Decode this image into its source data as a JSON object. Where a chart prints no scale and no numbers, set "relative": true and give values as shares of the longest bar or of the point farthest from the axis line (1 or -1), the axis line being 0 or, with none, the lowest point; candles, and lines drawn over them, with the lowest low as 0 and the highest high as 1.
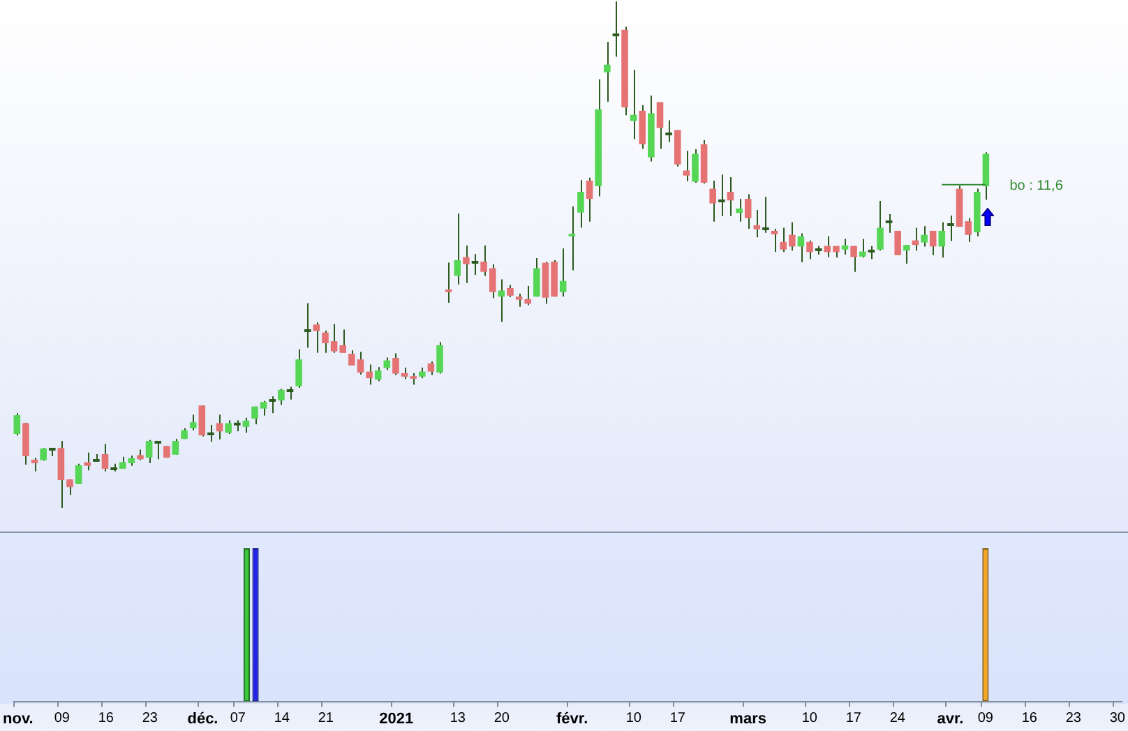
{
  "chart_data": [
    {
      "type": "candlestick",
      "relative": true,
      "tick_labels": false,
      "categories": [
        null,
        null,
        null,
        null,
        null,
        null,
        null,
        null,
        null,
        null,
        null,
        null,
        null,
        null,
        null,
        null,
        null,
        null,
        null,
        null,
        null,
        null,
        null,
        null,
        null,
        null,
        null,
        null,
        null,
        null,
        null,
        null,
        null,
        null,
        null,
        null,
        null,
        null,
        null,
        null,
        null,
        null,
        null,
        null,
        null,
        null,
        null,
        null,
        null,
        null,
        null,
        null,
        null,
        null,
        null,
        null,
        null,
        null,
        null,
        null,
        null,
        null,
        null,
        null,
        null,
        null,
        null,
        null,
        null,
        null,
        null,
        null,
        null,
        null,
        null,
        null,
        null,
        null,
        null,
        null,
        null,
        null,
        null,
        null,
        null,
        null,
        null,
        null,
        null,
        null,
        null,
        null,
        null,
        null,
        null,
        null,
        null,
        null,
        null,
        null,
        null,
        null,
        null,
        null,
        null,
        null,
        null,
        null,
        null,
        null,
        null,
        null,
        null,
        null,
        null,
        null,
        null,
        null,
        null,
        null,
        null,
        null,
        null,
        null,
        null,
        null
      ],
      "color": "#2d5a1e",
      "colors": [
        "#55d655",
        "#e57373",
        "#e57373",
        "#55d655",
        "#2d5a1e",
        "#e57373",
        "#e57373",
        "#55d655",
        "#e57373",
        "#2d5a1e",
        "#e57373",
        "#2d5a1e",
        "#55d655",
        "#55d655",
        "#e57373",
        "#55d655",
        "#2d5a1e",
        "#e57373",
        "#55d655",
        "#55d655",
        "#55d655",
        "#e57373",
        "#2d5a1e",
        "#e57373",
        "#55d655",
        "#2d5a1e",
        "#55d655",
        "#55d655",
        "#55d655",
        "#2d5a1e",
        "#55d655",
        "#2d5a1e",
        "#55d655",
        "#2d5a1e",
        "#e57373",
        "#e57373",
        "#e57373",
        "#e57373",
        "#e57373",
        "#e57373",
        "#e57373",
        "#55d655",
        "#55d655",
        "#e57373",
        "#e57373",
        "#e57373",
        "#55d655",
        "#e57373",
        "#55d655",
        "#e57373",
        "#55d655",
        "#e57373",
        "#2d5a1e",
        "#e57373",
        "#e57373",
        "#55d655",
        "#e57373",
        "#e57373",
        "#e57373",
        "#55d655",
        "#e57373",
        "#e57373",
        "#55d655",
        "#55d655",
        "#55d655",
        "#e57373",
        "#55d655",
        "#55d655",
        "#2d5a1e",
        "#e57373",
        "#55d655",
        "#e57373",
        "#55d655",
        "#e57373",
        "#2d5a1e",
        "#e57373",
        "#e57373",
        "#55d655",
        "#e57373",
        "#e57373",
        "#2d5a1e",
        "#e57373",
        "#55d655",
        "#e57373",
        "#e57373",
        "#2d5a1e",
        "#e57373",
        "#e57373",
        "#e57373",
        "#55d655",
        "#e57373",
        "#2d5a1e",
        "#e57373",
        "#e57373",
        "#55d655",
        "#e57373",
        "#55d655",
        "#2d5a1e",
        "#55d655",
        "#2d5a1e",
        "#e57373",
        "#55d655",
        "#e57373",
        "#55d655",
        "#e57373",
        "#55d655",
        "#2d5a1e",
        "#e57373",
        "#e57373",
        "#55d655",
        "#55d655",
        null,
        null,
        null,
        null,
        null,
        null,
        null,
        null,
        null,
        null,
        null,
        null,
        null,
        null,
        null
      ],
      "ohlc": [
        [
          0.146,
          0.187,
          0.143,
          0.183
        ],
        [
          0.167,
          0.168,
          0.085,
          0.102
        ],
        [
          0.095,
          0.099,
          0.072,
          0.088
        ],
        [
          0.094,
          0.118,
          0.093,
          0.117
        ],
        [
          0.115,
          0.118,
          0.102,
          0.115
        ],
        [
          0.118,
          0.132,
          0,
          0.055
        ],
        [
          0.056,
          0.056,
          0.025,
          0.041
        ],
        [
          0.047,
          0.087,
          0.047,
          0.084
        ],
        [
          0.09,
          0.109,
          0.074,
          0.083
        ],
        [
          0.093,
          0.106,
          0.091,
          0.093
        ],
        [
          0.106,
          0.126,
          0.072,
          0.077
        ],
        [
          0.077,
          0.087,
          0.072,
          0.077
        ],
        [
          0.077,
          0.101,
          0.077,
          0.09
        ],
        [
          0.088,
          0.103,
          0.083,
          0.098
        ],
        [
          0.104,
          0.115,
          0.094,
          0.096
        ],
        [
          0.099,
          0.134,
          0.088,
          0.132
        ],
        [
          0.13,
          0.13,
          0.096,
          0.13
        ],
        [
          0.122,
          0.122,
          0.099,
          0.099
        ],
        [
          0.105,
          0.136,
          0.105,
          0.132
        ],
        [
          0.136,
          0.157,
          0.136,
          0.153
        ],
        [
          0.157,
          0.184,
          0.153,
          0.169
        ],
        [
          0.202,
          0.202,
          0.141,
          0.143
        ],
        [
          0.147,
          0.164,
          0.13,
          0.147
        ],
        [
          0.167,
          0.184,
          0.135,
          0.151
        ],
        [
          0.148,
          0.173,
          0.146,
          0.167
        ],
        [
          0.165,
          0.173,
          0.151,
          0.165
        ],
        [
          0.16,
          0.178,
          0.148,
          0.172
        ],
        [
          0.176,
          0.2,
          0.165,
          0.2
        ],
        [
          0.196,
          0.211,
          0.182,
          0.209
        ],
        [
          0.212,
          0.22,
          0.187,
          0.212
        ],
        [
          0.212,
          0.235,
          0.203,
          0.233
        ],
        [
          0.232,
          0.239,
          0.214,
          0.232
        ],
        [
          0.24,
          0.313,
          0.237,
          0.293
        ],
        [
          0.35,
          0.404,
          0.316,
          0.35
        ],
        [
          0.362,
          0.366,
          0.306,
          0.349
        ],
        [
          0.346,
          0.35,
          0.306,
          0.325
        ],
        [
          0.329,
          0.363,
          0.306,
          0.309
        ],
        [
          0.321,
          0.352,
          0.306,
          0.306
        ],
        [
          0.304,
          0.311,
          0.281,
          0.281
        ],
        [
          0.293,
          0.308,
          0.263,
          0.267
        ],
        [
          0.269,
          0.283,
          0.243,
          0.256
        ],
        [
          0.253,
          0.278,
          0.25,
          0.271
        ],
        [
          0.276,
          0.297,
          0.272,
          0.291
        ],
        [
          0.296,
          0.305,
          0.262,
          0.265
        ],
        [
          0.266,
          0.277,
          0.254,
          0.259
        ],
        [
          0.26,
          0.266,
          0.243,
          0.255
        ],
        [
          0.259,
          0.277,
          0.256,
          0.269
        ],
        [
          0.285,
          0.289,
          0.262,
          0.269
        ],
        [
          0.267,
          0.327,
          0.265,
          0.321
        ],
        [
          0.431,
          0.484,
          0.405,
          0.426
        ],
        [
          0.458,
          0.581,
          0.441,
          0.489
        ],
        [
          0.495,
          0.518,
          0.444,
          0.481
        ],
        [
          0.484,
          0.501,
          0.46,
          0.484
        ],
        [
          0.486,
          0.518,
          0.458,
          0.466
        ],
        [
          0.473,
          0.481,
          0.414,
          0.426
        ],
        [
          0.417,
          0.451,
          0.367,
          0.429
        ],
        [
          0.434,
          0.44,
          0.416,
          0.419
        ],
        [
          0.417,
          0.423,
          0.397,
          0.411
        ],
        [
          0.412,
          0.438,
          0.4,
          0.403
        ],
        [
          0.417,
          0.493,
          0.417,
          0.473
        ],
        [
          0.484,
          0.486,
          0.403,
          0.415
        ],
        [
          0.486,
          0.489,
          0.417,
          0.417
        ],
        [
          0.426,
          0.512,
          0.417,
          0.448
        ],
        [
          0.536,
          0.595,
          0.469,
          0.541
        ],
        [
          0.583,
          0.647,
          0.553,
          0.624
        ],
        [
          0.646,
          0.652,
          0.565,
          0.61
        ],
        [
          0.635,
          0.846,
          0.615,
          0.787
        ],
        [
          0.86,
          0.92,
          0.802,
          0.875
        ],
        [
          0.935,
          1,
          0.891,
          0.935
        ],
        [
          0.944,
          0.95,
          0.775,
          0.791
        ],
        [
          0.764,
          0.865,
          0.728,
          0.776
        ],
        [
          0.784,
          0.795,
          0.709,
          0.718
        ],
        [
          0.692,
          0.814,
          0.684,
          0.779
        ],
        [
          0.801,
          0.801,
          0.709,
          0.75
        ],
        [
          0.738,
          0.765,
          0.722,
          0.738
        ],
        [
          0.746,
          0.746,
          0.674,
          0.678
        ],
        [
          0.666,
          0.705,
          0.645,
          0.656
        ],
        [
          0.644,
          0.708,
          0.642,
          0.699
        ],
        [
          0.718,
          0.726,
          0.64,
          0.642
        ],
        [
          0.63,
          0.646,
          0.565,
          0.601
        ],
        [
          0.605,
          0.658,
          0.576,
          0.605
        ],
        [
          0.624,
          0.653,
          0.576,
          0.607
        ],
        [
          0.582,
          0.61,
          0.565,
          0.591
        ],
        [
          0.61,
          0.619,
          0.551,
          0.572
        ],
        [
          0.558,
          0.588,
          0.534,
          0.55
        ],
        [
          0.551,
          0.614,
          0.543,
          0.551
        ],
        [
          0.547,
          0.551,
          0.505,
          0.54
        ],
        [
          0.525,
          0.553,
          0.505,
          0.51
        ],
        [
          0.539,
          0.564,
          0.508,
          0.516
        ],
        [
          0.516,
          0.542,
          0.485,
          0.536
        ],
        [
          0.525,
          0.528,
          0.491,
          0.505
        ],
        [
          0.509,
          0.517,
          0.5,
          0.509
        ],
        [
          0.517,
          0.536,
          0.495,
          0.505
        ],
        [
          0.517,
          0.517,
          0.494,
          0.505
        ],
        [
          0.51,
          0.531,
          0.5,
          0.518
        ],
        [
          0.517,
          0.517,
          0.466,
          0.495
        ],
        [
          0.496,
          0.531,
          0.494,
          0.506
        ],
        [
          0.506,
          0.517,
          0.491,
          0.506
        ],
        [
          0.51,
          0.606,
          0.508,
          0.553
        ],
        [
          0.565,
          0.58,
          0.543,
          0.565
        ],
        [
          0.547,
          0.547,
          0.499,
          0.499
        ],
        [
          0.508,
          0.519,
          0.482,
          0.519
        ],
        [
          0.528,
          0.553,
          0.508,
          0.519
        ],
        [
          0.524,
          0.556,
          0.516,
          0.539
        ],
        [
          0.547,
          0.547,
          0.499,
          0.516
        ],
        [
          0.516,
          0.564,
          0.494,
          0.547
        ],
        [
          0.559,
          0.577,
          0.527,
          0.559
        ],
        [
          0.63,
          0.636,
          0.555,
          0.555
        ],
        [
          0.566,
          0.572,
          0.525,
          0.539
        ],
        [
          0.544,
          0.63,
          0.536,
          0.624
        ],
        [
          0.635,
          0.702,
          0.608,
          0.699
        ],
        null,
        null,
        null,
        null,
        null,
        null,
        null,
        null,
        null,
        null,
        null,
        null,
        null,
        null,
        null
      ],
      "series": [
        {
          "type": "line",
          "color": "#358a35",
          "values": [
            null,
            null,
            null,
            null,
            null,
            null,
            null,
            null,
            null,
            null,
            null,
            null,
            null,
            null,
            null,
            null,
            null,
            null,
            null,
            null,
            null,
            null,
            null,
            null,
            null,
            null,
            null,
            null,
            null,
            null,
            null,
            null,
            null,
            null,
            null,
            null,
            null,
            null,
            null,
            null,
            null,
            null,
            null,
            null,
            null,
            null,
            null,
            null,
            null,
            null,
            null,
            null,
            null,
            null,
            null,
            null,
            null,
            null,
            null,
            null,
            null,
            null,
            null,
            null,
            null,
            null,
            null,
            null,
            null,
            null,
            null,
            null,
            null,
            null,
            null,
            null,
            null,
            null,
            null,
            null,
            null,
            null,
            null,
            null,
            null,
            null,
            null,
            null,
            null,
            null,
            null,
            null,
            null,
            null,
            null,
            null,
            null,
            null,
            null,
            null,
            null,
            null,
            null,
            null,
            null,
            0.638,
            0.638,
            0.638,
            0.638,
            0.638,
            0.638,
            null,
            null,
            null,
            null,
            null,
            null,
            null,
            null,
            null,
            null,
            null,
            null,
            null,
            null,
            null
          ]
        }
      ],
      "annotations": [
        "bo : 11,6"
      ]
    },
    {
      "type": "bar",
      "relative": true,
      "tick_labels": "x",
      "categories": [
        "nov.",
        null,
        null,
        null,
        null,
        "09",
        null,
        null,
        null,
        null,
        "16",
        null,
        null,
        null,
        null,
        "23",
        null,
        null,
        null,
        null,
        null,
        "déc.",
        null,
        null,
        null,
        "07",
        null,
        null,
        null,
        null,
        "14",
        null,
        null,
        null,
        null,
        "21",
        null,
        null,
        null,
        null,
        null,
        null,
        null,
        "2021",
        null,
        null,
        null,
        null,
        null,
        null,
        "13",
        null,
        null,
        null,
        null,
        "20",
        null,
        null,
        null,
        null,
        null,
        null,
        null,
        "févr.",
        null,
        null,
        null,
        null,
        null,
        null,
        "10",
        null,
        null,
        null,
        null,
        "17",
        null,
        null,
        null,
        null,
        null,
        null,
        null,
        "mars",
        null,
        null,
        null,
        null,
        null,
        null,
        "10",
        null,
        null,
        null,
        null,
        "17",
        null,
        null,
        null,
        null,
        "24",
        null,
        null,
        null,
        null,
        null,
        "avr.",
        null,
        null,
        null,
        "09",
        null,
        null,
        null,
        null,
        "16",
        null,
        null,
        null,
        null,
        "23",
        null,
        null,
        null,
        null,
        "30"
      ],
      "values": [
        null,
        null,
        null,
        null,
        null,
        null,
        null,
        null,
        null,
        null,
        null,
        null,
        null,
        null,
        null,
        null,
        null,
        null,
        null,
        null,
        null,
        null,
        null,
        null,
        null,
        null,
        1,
        1,
        null,
        null,
        null,
        null,
        null,
        null,
        null,
        null,
        null,
        null,
        null,
        null,
        null,
        null,
        null,
        null,
        null,
        null,
        null,
        null,
        null,
        null,
        null,
        null,
        null,
        null,
        null,
        null,
        null,
        null,
        null,
        null,
        null,
        null,
        null,
        null,
        null,
        null,
        null,
        null,
        null,
        null,
        null,
        null,
        null,
        null,
        null,
        null,
        null,
        null,
        null,
        null,
        null,
        null,
        null,
        null,
        null,
        null,
        null,
        null,
        null,
        null,
        null,
        null,
        null,
        null,
        null,
        null,
        null,
        null,
        null,
        null,
        null,
        null,
        null,
        null,
        null,
        null,
        null,
        null,
        null,
        null,
        1,
        null,
        null,
        null,
        null,
        null,
        null,
        null,
        null,
        null,
        null,
        null,
        null,
        null,
        null,
        null
      ],
      "colors": [
        null,
        null,
        null,
        null,
        null,
        null,
        null,
        null,
        null,
        null,
        null,
        null,
        null,
        null,
        null,
        null,
        null,
        null,
        null,
        null,
        null,
        null,
        null,
        null,
        null,
        null,
        "#3cc83c",
        "#2323ee",
        null,
        null,
        null,
        null,
        null,
        null,
        null,
        null,
        null,
        null,
        null,
        null,
        null,
        null,
        null,
        null,
        null,
        null,
        null,
        null,
        null,
        null,
        null,
        null,
        null,
        null,
        null,
        null,
        null,
        null,
        null,
        null,
        null,
        null,
        null,
        null,
        null,
        null,
        null,
        null,
        null,
        null,
        null,
        null,
        null,
        null,
        null,
        null,
        null,
        null,
        null,
        null,
        null,
        null,
        null,
        null,
        null,
        null,
        null,
        null,
        null,
        null,
        null,
        null,
        null,
        null,
        null,
        null,
        null,
        null,
        null,
        null,
        null,
        null,
        null,
        null,
        null,
        null,
        null,
        null,
        null,
        null,
        "#f5a623",
        null,
        null,
        null,
        null,
        null,
        null,
        null,
        null,
        null,
        null,
        null,
        null,
        null,
        null,
        null
      ]
    }
  ]
}
